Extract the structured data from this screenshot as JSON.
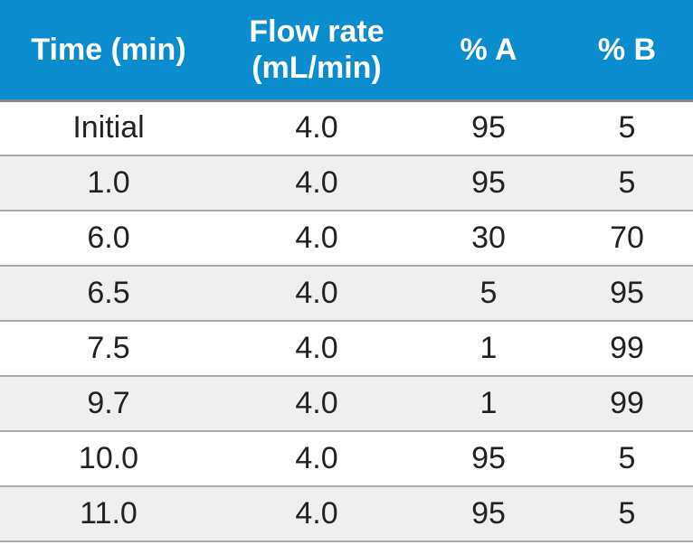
{
  "table": {
    "headers": [
      {
        "lines": [
          "Time (min)"
        ]
      },
      {
        "lines": [
          "Flow rate",
          "(mL/min)"
        ]
      },
      {
        "lines": [
          "% A"
        ]
      },
      {
        "lines": [
          "% B"
        ]
      }
    ],
    "rows": [
      [
        "Initial",
        "4.0",
        "95",
        "5"
      ],
      [
        "1.0",
        "4.0",
        "95",
        "5"
      ],
      [
        "6.0",
        "4.0",
        "30",
        "70"
      ],
      [
        "6.5",
        "4.0",
        "5",
        "95"
      ],
      [
        "7.5",
        "4.0",
        "1",
        "99"
      ],
      [
        "9.7",
        "4.0",
        "1",
        "99"
      ],
      [
        "10.0",
        "4.0",
        "95",
        "5"
      ],
      [
        "11.0",
        "4.0",
        "95",
        "5"
      ]
    ]
  },
  "colors": {
    "header_bg": "#0a8ccf",
    "header_text": "#ffffff",
    "row_alt_bg": "#efeff0",
    "divider": "#a9a9a9"
  }
}
